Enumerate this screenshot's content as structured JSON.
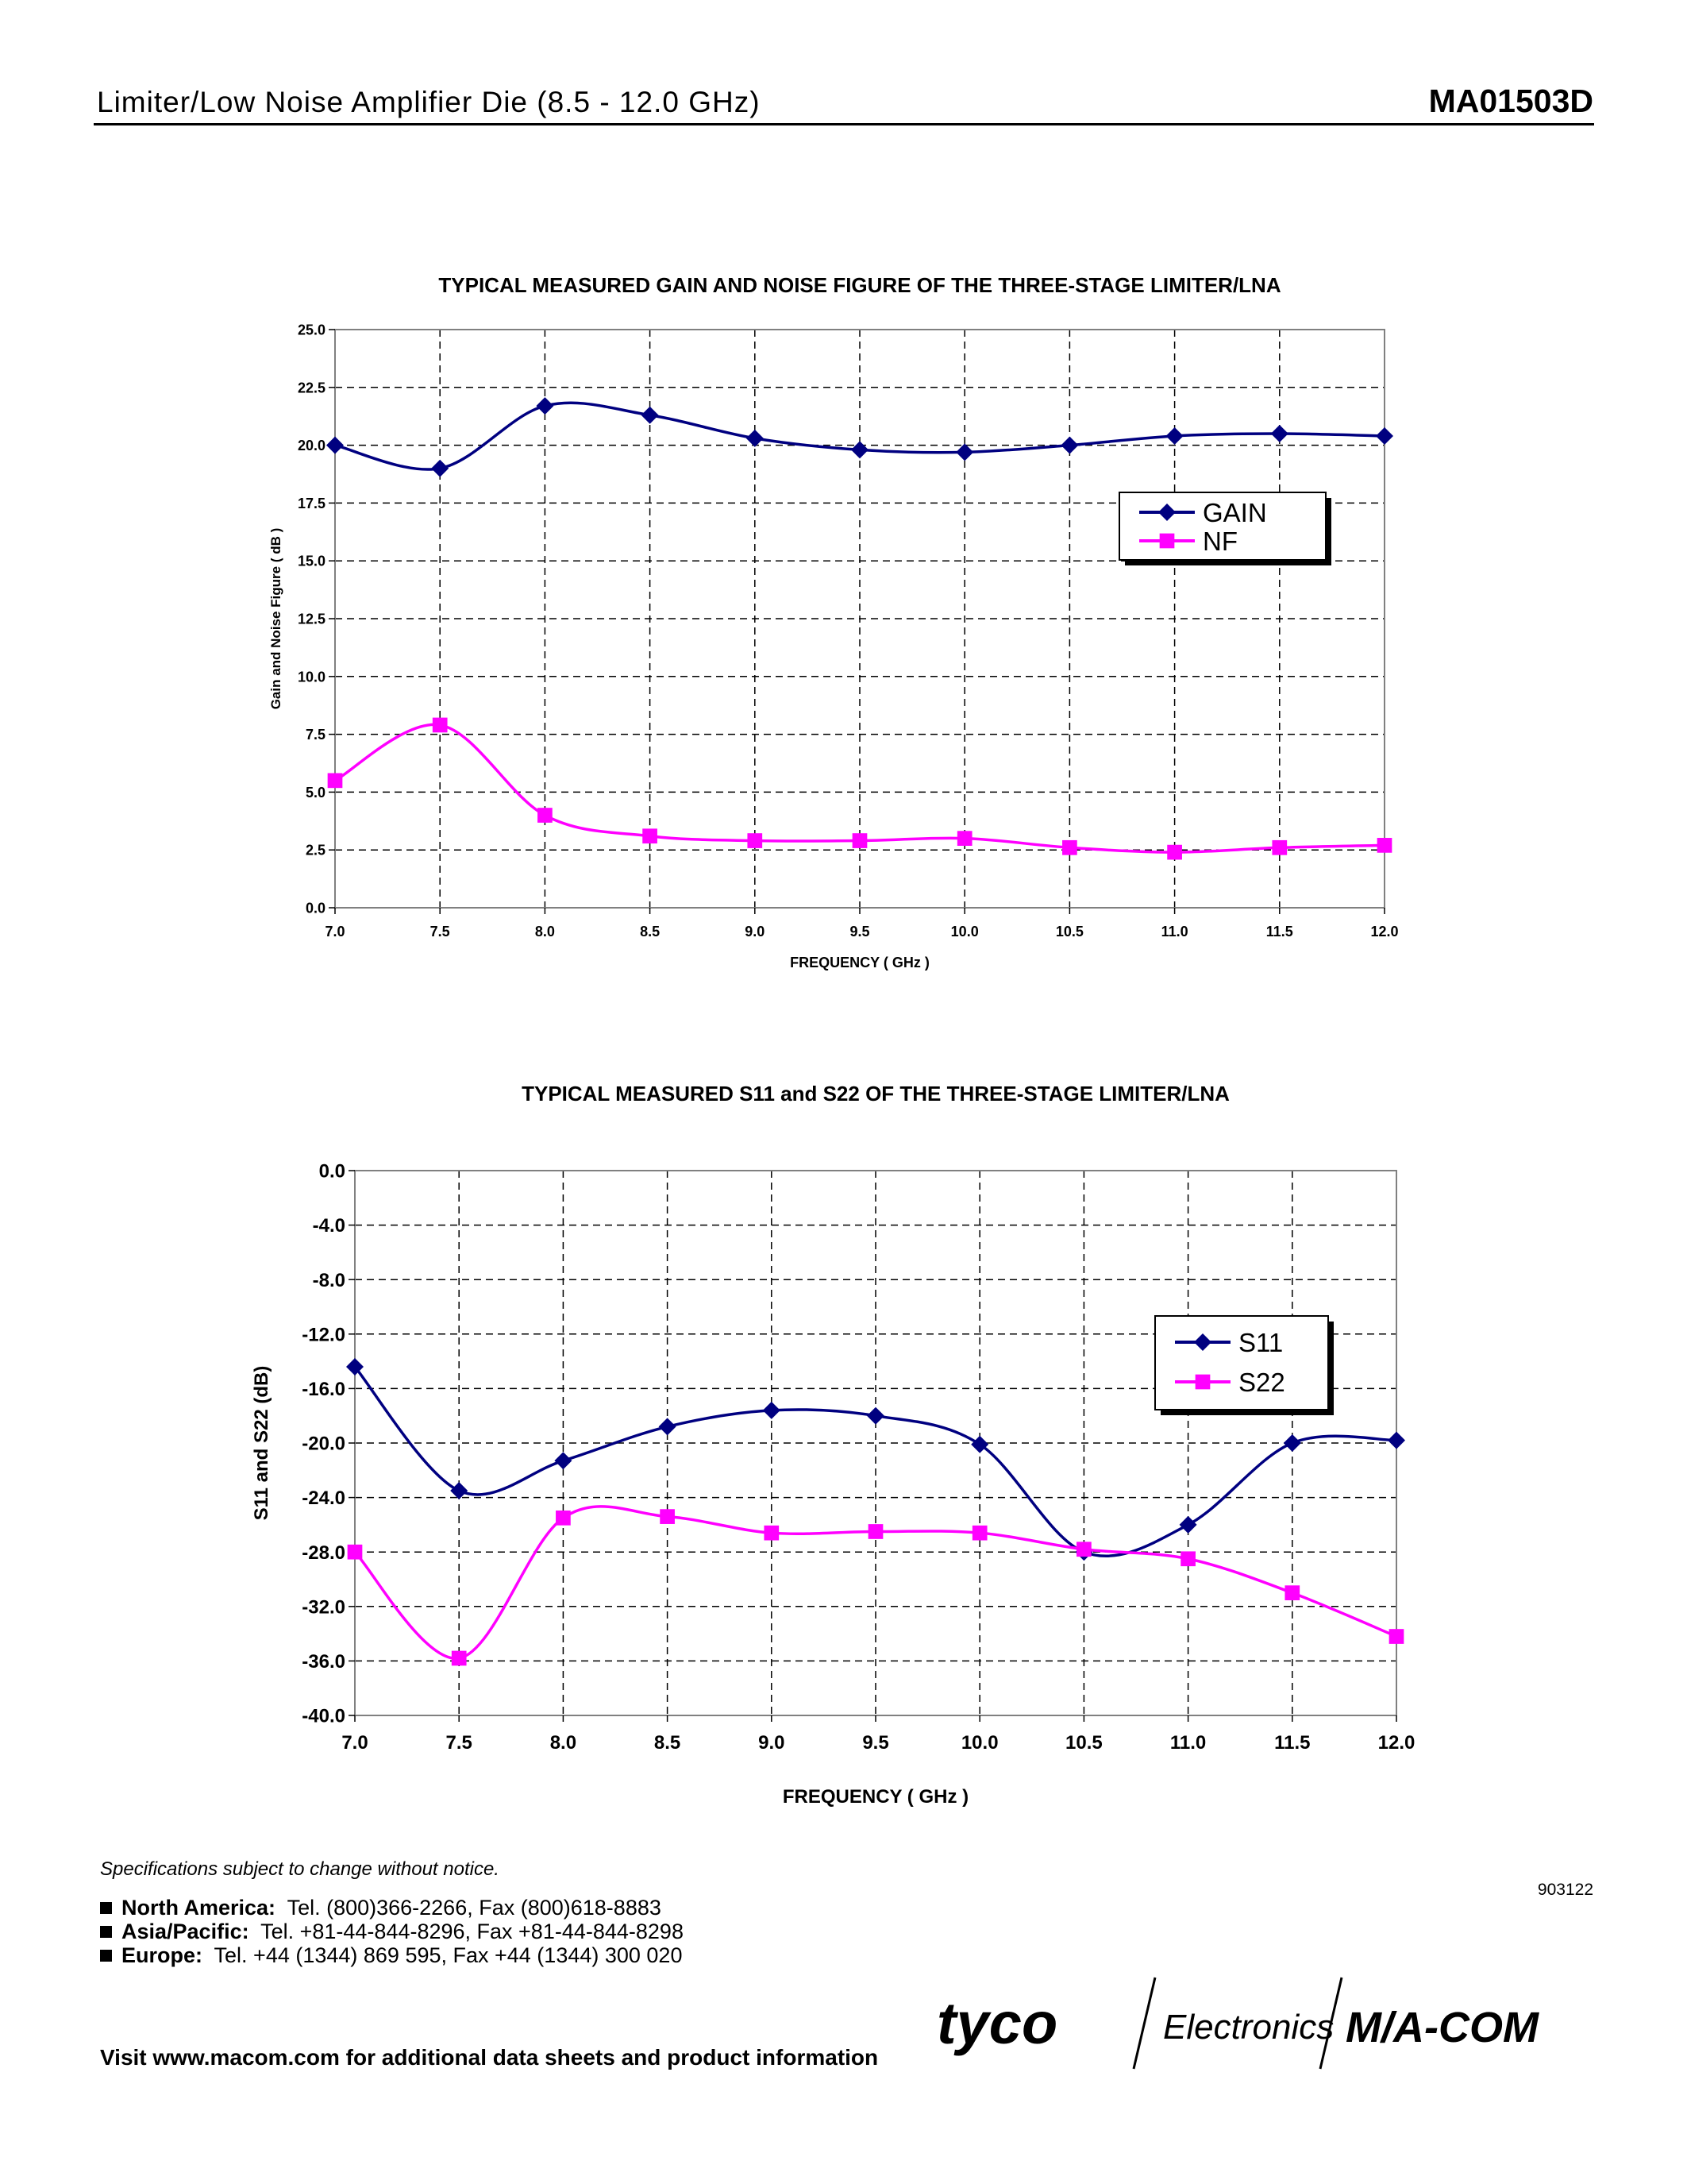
{
  "header": {
    "title": "Limiter/Low Noise Amplifier Die (8.5 - 12.0 GHz)",
    "part_number": "MA01503D"
  },
  "chart_data": [
    {
      "type": "line",
      "title": "TYPICAL MEASURED GAIN AND NOISE FIGURE OF THE THREE-STAGE LIMITER/LNA",
      "xlabel": "FREQUENCY ( GHz )",
      "ylabel": "Gain and Noise Figure ( dB )",
      "x": [
        7.0,
        7.5,
        8.0,
        8.5,
        9.0,
        9.5,
        10.0,
        10.5,
        11.0,
        11.5,
        12.0
      ],
      "x_ticks": [
        "7.0",
        "7.5",
        "8.0",
        "8.5",
        "9.0",
        "9.5",
        "10.0",
        "10.5",
        "11.0",
        "11.5",
        "12.0"
      ],
      "y_ticks": [
        "0.0",
        "2.5",
        "5.0",
        "7.5",
        "10.0",
        "12.5",
        "15.0",
        "17.5",
        "20.0",
        "22.5",
        "25.0"
      ],
      "xlim": [
        7.0,
        12.0
      ],
      "ylim": [
        0,
        25
      ],
      "grid": true,
      "legend_position": "right",
      "series": [
        {
          "name": "GAIN",
          "color": "#000080",
          "marker": "diamond",
          "values": [
            20.0,
            19.0,
            21.7,
            21.3,
            20.3,
            19.8,
            19.7,
            20.0,
            20.4,
            20.5,
            20.4
          ]
        },
        {
          "name": "NF",
          "color": "#ff00ff",
          "marker": "square",
          "values": [
            5.5,
            7.9,
            4.0,
            3.1,
            2.9,
            2.9,
            3.0,
            2.6,
            2.4,
            2.6,
            2.7
          ]
        }
      ]
    },
    {
      "type": "line",
      "title": "TYPICAL MEASURED S11 and S22 OF THE THREE-STAGE LIMITER/LNA",
      "xlabel": "FREQUENCY ( GHz )",
      "ylabel": "S11 and S22 (dB)",
      "x": [
        7.0,
        7.5,
        8.0,
        8.5,
        9.0,
        9.5,
        10.0,
        10.5,
        11.0,
        11.5,
        12.0
      ],
      "x_ticks": [
        "7.0",
        "7.5",
        "8.0",
        "8.5",
        "9.0",
        "9.5",
        "10.0",
        "10.5",
        "11.0",
        "11.5",
        "12.0"
      ],
      "y_ticks": [
        "-40.0",
        "-36.0",
        "-32.0",
        "-28.0",
        "-24.0",
        "-20.0",
        "-16.0",
        "-12.0",
        "-8.0",
        "-4.0",
        "0.0"
      ],
      "xlim": [
        7.0,
        12.0
      ],
      "ylim": [
        -40,
        0
      ],
      "grid": true,
      "legend_position": "right",
      "series": [
        {
          "name": "S11",
          "color": "#000080",
          "marker": "diamond",
          "values": [
            -14.4,
            -23.5,
            -21.3,
            -18.8,
            -17.6,
            -18.0,
            -20.1,
            -28.0,
            -26.0,
            -20.0,
            -19.8
          ]
        },
        {
          "name": "S22",
          "color": "#ff00ff",
          "marker": "square",
          "values": [
            -28.0,
            -35.8,
            -25.5,
            -25.4,
            -26.6,
            -26.5,
            -26.6,
            -27.8,
            -28.5,
            -31.0,
            -34.2
          ]
        }
      ]
    }
  ],
  "footer": {
    "spec_note": "Specifications subject to change without notice.",
    "doc_code": "903122",
    "contacts": [
      {
        "region": "North America:",
        "details": "Tel. (800)366-2266,  Fax (800)618-8883"
      },
      {
        "region": "Asia/Pacific:",
        "details": "Tel. +81-44-844-8296,  Fax +81-44-844-8298"
      },
      {
        "region": "Europe:",
        "details": "Tel. +44 (1344) 869 595,  Fax +44 (1344) 300 020"
      }
    ],
    "visit_text": "Visit www.macom.com for additional data sheets and product information",
    "logo": {
      "word1": "tyco",
      "word2": "Electronics",
      "word3": "M/A-COM"
    }
  }
}
